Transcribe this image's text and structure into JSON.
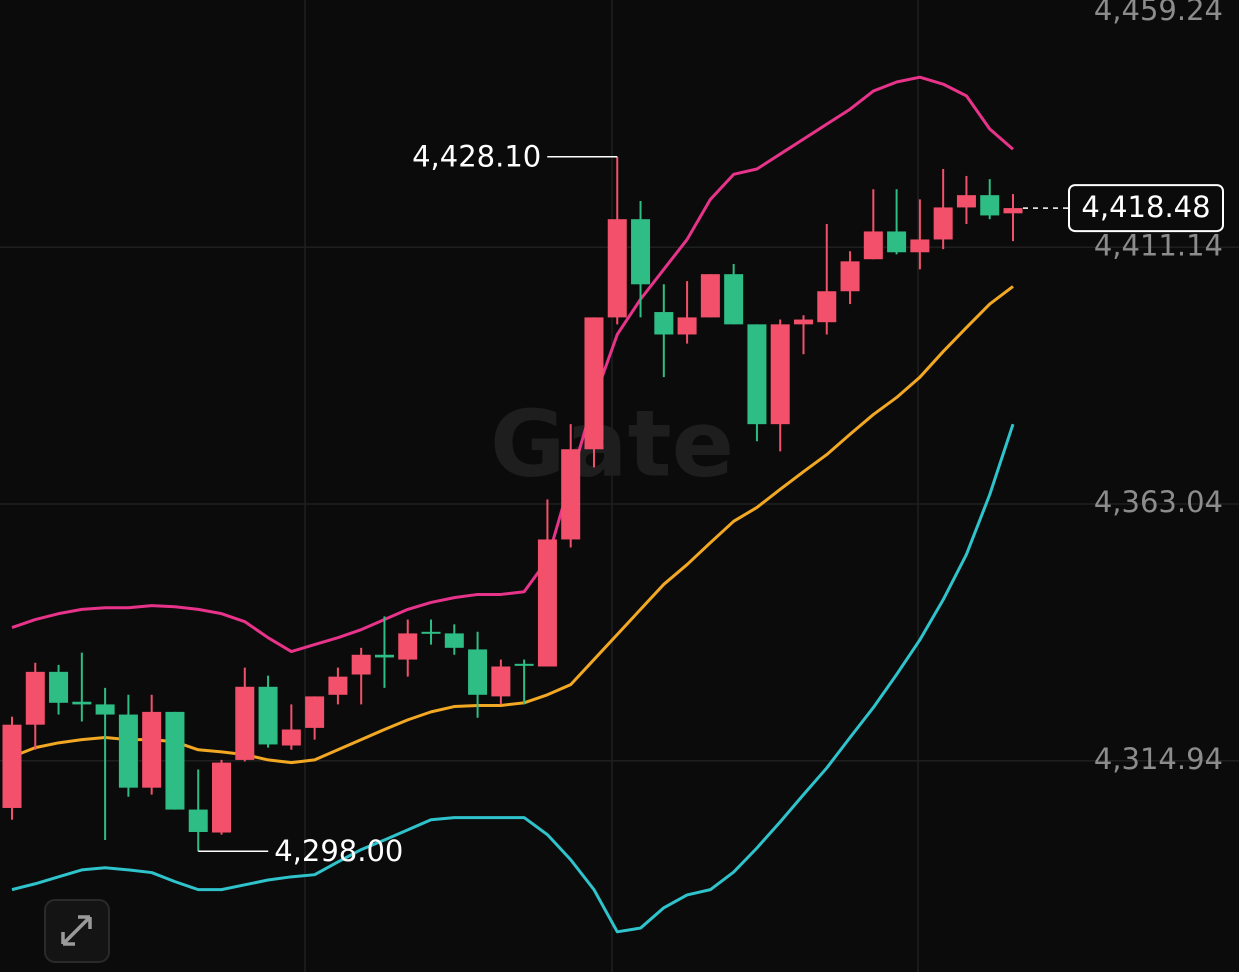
{
  "chart_data": {
    "type": "candlestick",
    "open": [
      4306.1,
      4321.7,
      4331.6,
      4326.0,
      4325.5,
      4323.6,
      4309.9,
      4324.1,
      4305.8,
      4301.5,
      4315.1,
      4328.8,
      4317.8,
      4321.1,
      4327.3,
      4331.1,
      4334.8,
      4333.9,
      4339.1,
      4338.8,
      4335.8,
      4327.0,
      4333.1,
      4332.6,
      4356.4,
      4373.3,
      4398.0,
      4416.4,
      4399.0,
      4394.8,
      4398.0,
      4406.1,
      4396.7,
      4378.0,
      4396.7,
      4397.1,
      4402.9,
      4408.9,
      4414.1,
      4410.2,
      4412.6,
      4418.6,
      4420.9,
      4417.5
    ],
    "high": [
      4323.2,
      4333.3,
      4332.9,
      4335.2,
      4328.6,
      4327.3,
      4327.3,
      4324.1,
      4313.3,
      4315.1,
      4332.4,
      4330.9,
      4325.5,
      4327.0,
      4332.4,
      4336.1,
      4342.0,
      4341.4,
      4341.4,
      4340.5,
      4339.1,
      4333.9,
      4333.9,
      4363.9,
      4378.0,
      4398.0,
      4428.1,
      4419.8,
      4404.2,
      4404.8,
      4406.1,
      4408.0,
      4396.7,
      4397.6,
      4398.4,
      4415.5,
      4410.4,
      4422.0,
      4422.0,
      4420.1,
      4425.8,
      4424.5,
      4423.9,
      4421.1
    ],
    "low": [
      4303.9,
      4317.0,
      4323.6,
      4322.3,
      4300.1,
      4308.2,
      4308.6,
      4305.8,
      4298.0,
      4301.1,
      4314.8,
      4317.4,
      4317.0,
      4318.9,
      4325.5,
      4325.5,
      4328.6,
      4330.7,
      4336.7,
      4334.8,
      4323.0,
      4325.5,
      4325.5,
      4332.6,
      4354.9,
      4369.9,
      4396.7,
      4398.0,
      4386.8,
      4393.1,
      4398.0,
      4396.7,
      4374.8,
      4372.9,
      4391.1,
      4394.8,
      4400.5,
      4408.9,
      4409.8,
      4407.0,
      4410.8,
      4415.5,
      4416.4,
      4412.3
    ],
    "close": [
      4321.7,
      4331.6,
      4325.8,
      4325.5,
      4323.6,
      4309.9,
      4324.1,
      4305.8,
      4301.6,
      4314.6,
      4328.8,
      4318.0,
      4320.8,
      4327.0,
      4330.7,
      4334.8,
      4334.3,
      4338.8,
      4338.8,
      4336.1,
      4327.3,
      4332.6,
      4332.8,
      4356.4,
      4373.3,
      4398.0,
      4416.4,
      4404.2,
      4394.8,
      4398.0,
      4406.1,
      4396.7,
      4378.0,
      4396.7,
      4397.6,
      4402.9,
      4408.5,
      4414.1,
      4410.2,
      4412.6,
      4418.6,
      4420.9,
      4417.1,
      4418.48
    ],
    "up_color": "#f3516b",
    "down_color": "#2ebd85",
    "lines": [
      {
        "color": "#e8338a",
        "values": [
          4339.9,
          4341.4,
          4342.5,
          4343.3,
          4343.6,
          4343.6,
          4344.0,
          4343.8,
          4343.3,
          4342.5,
          4341.0,
          4338.0,
          4335.4,
          4336.7,
          4338.0,
          4339.5,
          4341.4,
          4343.3,
          4344.6,
          4345.5,
          4346.1,
          4346.1,
          4346.6,
          4352.6,
          4367.6,
          4382.6,
          4394.8,
          4401.4,
          4407.0,
          4412.6,
          4420.1,
          4424.8,
          4425.8,
          4428.6,
          4431.4,
          4434.2,
          4437.0,
          4440.4,
          4442.1,
          4443.0,
          4441.7,
          4439.5,
          4433.3,
          4429.5
        ]
      },
      {
        "color": "#f2a823",
        "values": [
          4315.7,
          4317.4,
          4318.3,
          4318.9,
          4319.3,
          4318.9,
          4318.9,
          4318.5,
          4317.0,
          4316.6,
          4316.1,
          4315.1,
          4314.6,
          4315.1,
          4317.0,
          4318.9,
          4320.8,
          4322.6,
          4324.1,
          4325.1,
          4325.3,
          4325.3,
          4325.8,
          4327.3,
          4329.2,
          4333.9,
          4338.6,
          4343.3,
          4348.0,
          4351.7,
          4355.8,
          4359.8,
          4362.4,
          4365.8,
          4369.1,
          4372.3,
          4376.1,
          4379.8,
          4383.0,
          4386.8,
          4391.6,
          4396.1,
          4400.5,
          4403.8
        ]
      },
      {
        "color": "#2fc3cc",
        "values": [
          4290.8,
          4291.9,
          4293.2,
          4294.5,
          4294.9,
          4294.5,
          4294.0,
          4292.3,
          4290.8,
          4290.8,
          4291.7,
          4292.6,
          4293.2,
          4293.6,
          4296.0,
          4298.3,
          4300.1,
          4302.0,
          4303.9,
          4304.3,
          4304.3,
          4304.3,
          4304.3,
          4301.1,
          4296.4,
          4290.8,
          4282.9,
          4283.6,
          4287.4,
          4289.8,
          4290.8,
          4294.1,
          4298.6,
          4303.5,
          4308.6,
          4313.6,
          4319.3,
          4324.9,
          4331.1,
          4337.6,
          4345.1,
          4353.6,
          4364.8,
          4378.0
        ]
      }
    ],
    "ylim": [
      4275.37,
      4459.24
    ],
    "yticks": [
      {
        "value": 4459.24,
        "label": "4,459.24"
      },
      {
        "value": 4411.14,
        "label": "4,411.14"
      },
      {
        "value": 4363.04,
        "label": "4,363.04"
      },
      {
        "value": 4314.94,
        "label": "4,314.94"
      }
    ],
    "grid": true,
    "high_label": {
      "value": 4428.1,
      "label": "4,428.10"
    },
    "low_label": {
      "value": 4298.0,
      "label": "4,298.00"
    },
    "last_price": {
      "value": 4418.48,
      "label": "4,418.48"
    },
    "watermark": "Gate"
  }
}
